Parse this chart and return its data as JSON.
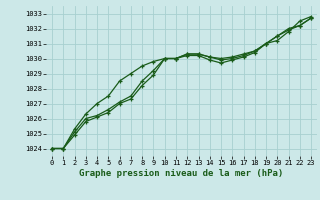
{
  "xlabel": "Graphe pression niveau de la mer (hPa)",
  "background_color": "#cce8e8",
  "grid_color": "#a8d0d0",
  "line_color": "#1a5c1a",
  "xlim": [
    -0.5,
    23.5
  ],
  "ylim": [
    1023.5,
    1033.5
  ],
  "yticks": [
    1024,
    1025,
    1026,
    1027,
    1028,
    1029,
    1030,
    1031,
    1032,
    1033
  ],
  "xticks": [
    0,
    1,
    2,
    3,
    4,
    5,
    6,
    7,
    8,
    9,
    10,
    11,
    12,
    13,
    14,
    15,
    16,
    17,
    18,
    19,
    20,
    21,
    22,
    23
  ],
  "series1": [
    1024.0,
    1024.0,
    1024.9,
    1025.8,
    1026.1,
    1026.4,
    1027.0,
    1027.3,
    1028.2,
    1028.9,
    1030.0,
    1030.0,
    1030.3,
    1030.3,
    1030.1,
    1030.0,
    1030.1,
    1030.3,
    1030.5,
    1031.0,
    1031.2,
    1031.8,
    1032.5,
    1032.8
  ],
  "series2": [
    1024.0,
    1024.0,
    1025.1,
    1026.0,
    1026.2,
    1026.6,
    1027.1,
    1027.5,
    1028.5,
    1029.2,
    1030.0,
    1030.0,
    1030.3,
    1030.3,
    1030.1,
    1029.9,
    1030.0,
    1030.2,
    1030.5,
    1031.0,
    1031.5,
    1032.0,
    1032.2,
    1032.7
  ],
  "series3": [
    1024.0,
    1024.0,
    1025.3,
    1026.3,
    1027.0,
    1027.5,
    1028.5,
    1029.0,
    1029.5,
    1029.8,
    1030.0,
    1030.0,
    1030.2,
    1030.2,
    1029.9,
    1029.7,
    1029.9,
    1030.1,
    1030.4,
    1031.0,
    1031.5,
    1031.9,
    1032.2,
    1032.7
  ]
}
